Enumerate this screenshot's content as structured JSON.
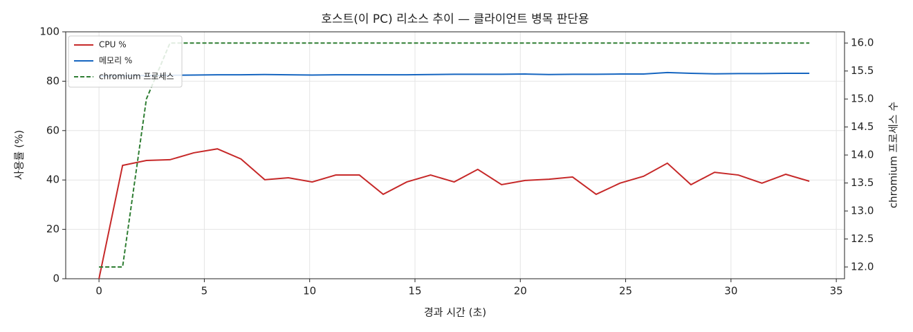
{
  "chart_data": {
    "type": "line",
    "title": "호스트(이 PC) 리소스 추이 — 클라이언트 병목 판단용",
    "x_label": "경과 시간 (초)",
    "y_label": "사용률 (%)",
    "y2_label": "chromium 프로세스 수",
    "x": [
      0,
      1.12,
      2.25,
      3.37,
      4.5,
      5.62,
      6.74,
      7.87,
      8.99,
      10.12,
      11.24,
      12.36,
      13.49,
      14.61,
      15.74,
      16.86,
      17.98,
      19.11,
      20.23,
      21.36,
      22.48,
      23.6,
      24.73,
      25.85,
      26.98,
      28.1,
      29.22,
      30.35,
      31.47,
      32.6,
      33.72
    ],
    "series": [
      {
        "name": "CPU %",
        "color": "#c62828",
        "values": [
          0,
          45.9,
          47.9,
          48.2,
          51,
          52.6,
          48.5,
          40.1,
          40.9,
          39.2,
          42,
          42,
          34.2,
          39.2,
          42,
          39.2,
          44.3,
          38.1,
          39.8,
          40.3,
          41.2,
          34.2,
          38.7,
          41.5,
          46.8,
          38.1,
          43.1,
          42,
          38.7,
          42.3,
          39.5
        ]
      },
      {
        "name": "메모리 %",
        "color": "#1565c0",
        "values": [
          82,
          82.2,
          82.3,
          82.4,
          82.5,
          82.6,
          82.6,
          82.7,
          82.6,
          82.5,
          82.6,
          82.6,
          82.6,
          82.6,
          82.7,
          82.8,
          82.8,
          82.8,
          82.9,
          82.7,
          82.8,
          82.8,
          82.9,
          82.9,
          83.5,
          83.2,
          83,
          83.1,
          83.1,
          83.2,
          83.2
        ]
      },
      {
        "name": "chromium 프로세스",
        "color": "#2e7d32",
        "dashed": true,
        "axis": "y2",
        "values": [
          12,
          12,
          15,
          16,
          16,
          16,
          16,
          16,
          16,
          16,
          16,
          16,
          16,
          16,
          16,
          16,
          16,
          16,
          16,
          16,
          16,
          16,
          16,
          16,
          16,
          16,
          16,
          16,
          16,
          16,
          16
        ]
      }
    ],
    "xlim": [
      -1.58,
      35.39
    ],
    "xticks": [
      0,
      5,
      10,
      15,
      20,
      25,
      30,
      35
    ],
    "ylim": [
      0,
      100
    ],
    "yticks": [
      0,
      20,
      40,
      60,
      80,
      100
    ],
    "y2lim": [
      11.79,
      16.2
    ],
    "y2ticks": [
      {
        "value": 12,
        "label": "12.0"
      },
      12.5,
      {
        "value": 13,
        "label": "13.0"
      },
      13.5,
      {
        "value": 14,
        "label": "14.0"
      },
      14.5,
      {
        "value": 15,
        "label": "15.0"
      },
      15.5,
      {
        "value": 16,
        "label": "16.0"
      }
    ],
    "grid": true,
    "legend": "upper-left"
  }
}
